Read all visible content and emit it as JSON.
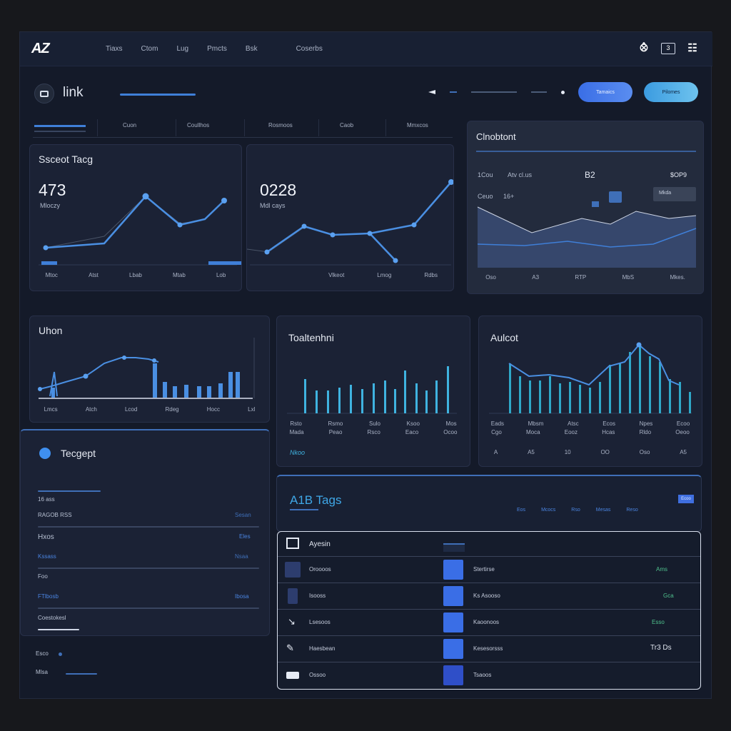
{
  "app": {
    "logo": "AZ",
    "nav": [
      "Tiaxs",
      "Ctom",
      "Lug",
      "Pmcts",
      "Bsk",
      "Coserbs"
    ],
    "top_icons": [
      "logo-mark-icon",
      "notification-count-icon",
      "user-icon"
    ],
    "notification_count": "3"
  },
  "page": {
    "title": "link",
    "primary_button": "Tamaics",
    "secondary_button": "Pilomes"
  },
  "tabs": [
    "Cuon",
    "Coullhos",
    "Rosmoos",
    "Caob",
    "Mmxcos"
  ],
  "card1": {
    "title": "Ssceot Tacg",
    "big": "473",
    "sub": "Mloczy",
    "xlabels": [
      "Mtoc",
      "Atst",
      "Lbab",
      "Mtab",
      "Lob"
    ]
  },
  "card2": {
    "big": "0228",
    "sub": "Mdl cays",
    "xlabels": [
      "Vlkeot",
      "Lmog",
      "Rdbs"
    ]
  },
  "card3": {
    "title": "Clnobtont",
    "row1": [
      "1Cou",
      "Atv cl.us",
      "B2",
      "$OP9"
    ],
    "chip": "Ceuo",
    "chip2": "16+",
    "badge": "Mkda",
    "xlabels": [
      "Oso",
      "A3",
      "RTP",
      "MbS",
      "Mkes."
    ]
  },
  "card4": {
    "title": "Uhon",
    "xlabels": [
      "Lmcs",
      "Atch",
      "Lcod",
      "Rdeg",
      "Hocc",
      "Lxl"
    ]
  },
  "card5": {
    "title": "Toaltenhni",
    "xlabels": [
      "Rsto",
      "Rsmo",
      "Sulo",
      "Ksoo",
      "Mos"
    ],
    "xlabels2": [
      "Mada",
      "Peao",
      "Rsco",
      "Eaco",
      "Ocoo"
    ],
    "footer": "Nkoo"
  },
  "card6": {
    "title": "Aulcot",
    "xlabels": [
      "Eads",
      "Mbsm",
      "Atsc",
      "Ecos",
      "Npes",
      "Ecoo"
    ],
    "xlabels2": [
      "Cgo",
      "Moca",
      "Eooz",
      "Hcas",
      "Rldo",
      "Oeoo"
    ],
    "footer": [
      "A",
      "A5",
      "10",
      "OO",
      "Oso",
      "A5"
    ]
  },
  "card7": {
    "title": "Tecgept",
    "rows": [
      {
        "label": "16 ass",
        "value": ""
      },
      {
        "label": "RAGOB RSS",
        "value": "Sesan"
      },
      {
        "label": "Hxos",
        "value": "Eles"
      },
      {
        "label": "Kssass",
        "value": "Nsaa",
        "blue": true
      },
      {
        "label": "Foo",
        "value": ""
      },
      {
        "label": "FTlbosb",
        "value": "Ibosa",
        "blue": true
      },
      {
        "label": "Coestokesl",
        "value": ""
      }
    ],
    "foot1": "Esco",
    "foot2": "Mlsa"
  },
  "card8": {
    "title": "A1B Tags",
    "badge": "Ecoo",
    "filters": [
      "Eos",
      "Mcocs",
      "Rso",
      "Mesas",
      "Reso"
    ]
  },
  "table": {
    "header": "Ayesin",
    "rows": [
      {
        "a": "Oroooos",
        "b": "Stertirse",
        "c": "Ams"
      },
      {
        "a": "Isooss",
        "b": "Ks Asooso",
        "c": "Gca"
      },
      {
        "a": "Lsesoos",
        "b": "Kaoonoos",
        "c": "Esso"
      },
      {
        "a": "Haesbean",
        "b": "Kesesorsss",
        "c": "Tr3 Ds"
      },
      {
        "a": "Ossoo",
        "b": "Tsaoos",
        "c": ""
      }
    ]
  },
  "colors": {
    "accent": "#3f7fd8",
    "cyan": "#3fb3e0",
    "background": "#141a29"
  }
}
